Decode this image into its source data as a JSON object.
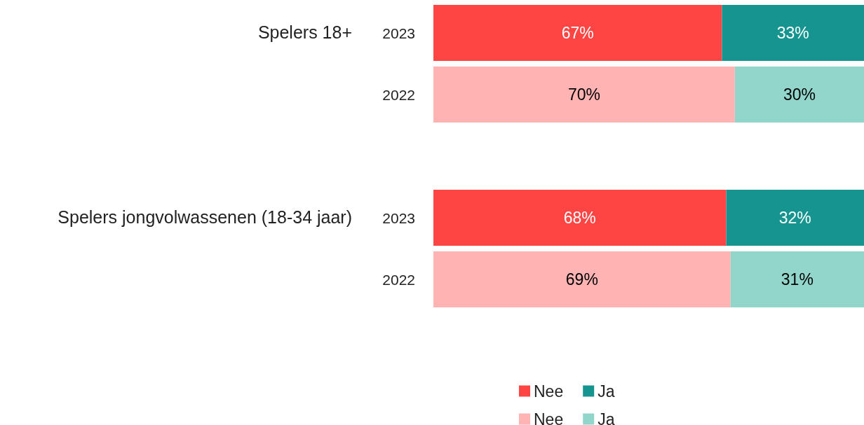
{
  "chart_data": {
    "type": "bar",
    "orientation": "horizontal",
    "stacked": true,
    "categories": [
      "2023",
      "2022",
      null,
      "2023",
      "2022"
    ],
    "series": [
      {
        "name": "Nee",
        "color": "#ff4444",
        "values": [
          67,
          null,
          null,
          68,
          null
        ],
        "value_labels": [
          "67%",
          null,
          null,
          "68%",
          null
        ]
      },
      {
        "name": "Ja",
        "color": "#159490",
        "values": [
          33,
          null,
          null,
          32,
          null
        ],
        "value_labels": [
          "33%",
          null,
          null,
          "32%",
          null
        ]
      },
      {
        "name": "Nee",
        "color": "#ffb3b3",
        "values": [
          null,
          70,
          null,
          null,
          69
        ],
        "value_labels": [
          null,
          "70%",
          null,
          null,
          "69%"
        ]
      },
      {
        "name": "Ja",
        "color": "#92d5cb",
        "values": [
          null,
          30,
          null,
          null,
          31
        ],
        "value_labels": [
          null,
          "30%",
          null,
          null,
          "31%"
        ]
      }
    ],
    "tick_labels": "y",
    "legend": "bottom",
    "grid": false,
    "annotations": [
      "Spelers 18+",
      "Spelers jongvolwassenen (18-34 jaar)"
    ]
  }
}
